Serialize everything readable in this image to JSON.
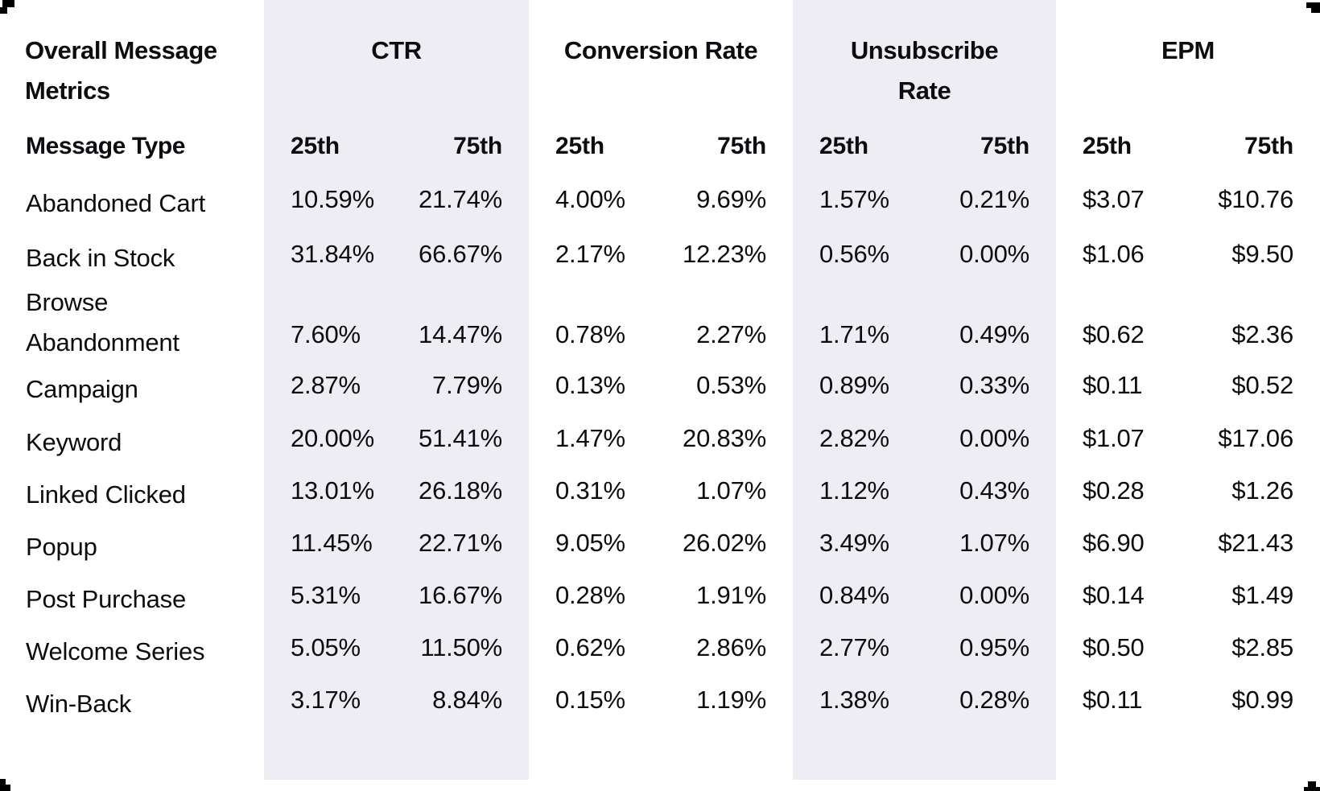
{
  "header": {
    "title_lines": [
      "Overall Message",
      "Metrics"
    ],
    "row_header": "Message Type",
    "group_header_lines": [
      [
        "CTR"
      ],
      [
        "Conversion Rate"
      ],
      [
        "Unsubscribe",
        "Rate"
      ],
      [
        "EPM"
      ]
    ],
    "percentile_low": "25th",
    "percentile_high": "75th"
  },
  "colors": {
    "band": "#EDEDF3",
    "text": "#0C0D10",
    "background": "#FFFFFF",
    "corner_mark": "#000000"
  },
  "chart_data": {
    "type": "table",
    "title": "Overall Message Metrics",
    "row_header": "Message Type",
    "column_groups": [
      "CTR",
      "Conversion Rate",
      "Unsubscribe Rate",
      "EPM"
    ],
    "subcolumns": [
      "25th",
      "75th"
    ],
    "rows": [
      {
        "message_type": "Abandoned Cart",
        "ctr": [
          "10.59%",
          "21.74%"
        ],
        "conversion_rate": [
          "4.00%",
          "9.69%"
        ],
        "unsubscribe_rate": [
          "1.57%",
          "0.21%"
        ],
        "epm": [
          "$3.07",
          "$10.76"
        ]
      },
      {
        "message_type": "Back in Stock",
        "ctr": [
          "31.84%",
          "66.67%"
        ],
        "conversion_rate": [
          "2.17%",
          "12.23%"
        ],
        "unsubscribe_rate": [
          "0.56%",
          "0.00%"
        ],
        "epm": [
          "$1.06",
          "$9.50"
        ]
      },
      {
        "message_type": "Browse Abandonment",
        "ctr": [
          "7.60%",
          "14.47%"
        ],
        "conversion_rate": [
          "0.78%",
          "2.27%"
        ],
        "unsubscribe_rate": [
          "1.71%",
          "0.49%"
        ],
        "epm": [
          "$0.62",
          "$2.36"
        ]
      },
      {
        "message_type": "Campaign",
        "ctr": [
          "2.87%",
          "7.79%"
        ],
        "conversion_rate": [
          "0.13%",
          "0.53%"
        ],
        "unsubscribe_rate": [
          "0.89%",
          "0.33%"
        ],
        "epm": [
          "$0.11",
          "$0.52"
        ]
      },
      {
        "message_type": "Keyword",
        "ctr": [
          "20.00%",
          "51.41%"
        ],
        "conversion_rate": [
          "1.47%",
          "20.83%"
        ],
        "unsubscribe_rate": [
          "2.82%",
          "0.00%"
        ],
        "epm": [
          "$1.07",
          "$17.06"
        ]
      },
      {
        "message_type": "Linked Clicked",
        "ctr": [
          "13.01%",
          "26.18%"
        ],
        "conversion_rate": [
          "0.31%",
          "1.07%"
        ],
        "unsubscribe_rate": [
          "1.12%",
          "0.43%"
        ],
        "epm": [
          "$0.28",
          "$1.26"
        ]
      },
      {
        "message_type": "Popup",
        "ctr": [
          "11.45%",
          "22.71%"
        ],
        "conversion_rate": [
          "9.05%",
          "26.02%"
        ],
        "unsubscribe_rate": [
          "3.49%",
          "1.07%"
        ],
        "epm": [
          "$6.90",
          "$21.43"
        ]
      },
      {
        "message_type": "Post Purchase",
        "ctr": [
          "5.31%",
          "16.67%"
        ],
        "conversion_rate": [
          "0.28%",
          "1.91%"
        ],
        "unsubscribe_rate": [
          "0.84%",
          "0.00%"
        ],
        "epm": [
          "$0.14",
          "$1.49"
        ]
      },
      {
        "message_type": "Welcome Series",
        "ctr": [
          "5.05%",
          "11.50%"
        ],
        "conversion_rate": [
          "0.62%",
          "2.86%"
        ],
        "unsubscribe_rate": [
          "2.77%",
          "0.95%"
        ],
        "epm": [
          "$0.50",
          "$2.85"
        ]
      },
      {
        "message_type": "Win-Back",
        "ctr": [
          "3.17%",
          "8.84%"
        ],
        "conversion_rate": [
          "0.15%",
          "1.19%"
        ],
        "unsubscribe_rate": [
          "1.38%",
          "0.28%"
        ],
        "epm": [
          "$0.11",
          "$0.99"
        ]
      }
    ]
  }
}
